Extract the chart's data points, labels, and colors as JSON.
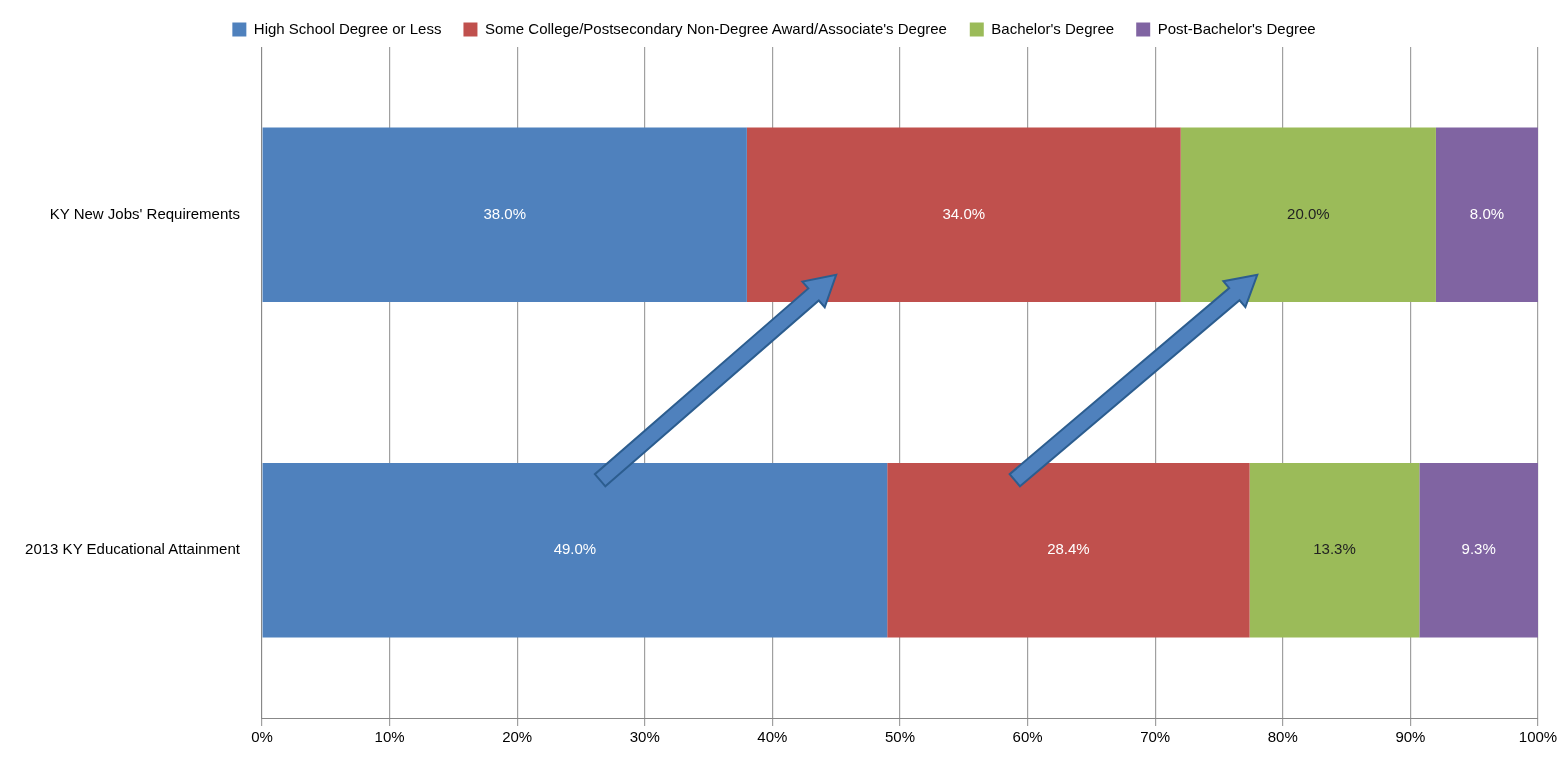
{
  "chart_data": {
    "type": "bar",
    "orientation": "horizontal",
    "stacked": true,
    "categories": [
      "KY New Jobs' Requirements",
      "2013 KY Educational Attainment"
    ],
    "series": [
      {
        "name": "High School Degree or Less",
        "color": "#4f81bd",
        "values": [
          38.0,
          49.0
        ],
        "value_labels": [
          "38.0%",
          "49.0%"
        ]
      },
      {
        "name": "Some College/Postsecondary Non-Degree Award/Associate's Degree",
        "color": "#c0504d",
        "values": [
          34.0,
          28.4
        ],
        "value_labels": [
          "34.0%",
          "28.4%"
        ]
      },
      {
        "name": "Bachelor's Degree",
        "color": "#9bbb59",
        "values": [
          20.0,
          13.3
        ],
        "value_labels": [
          "20.0%",
          "13.3%"
        ]
      },
      {
        "name": "Post-Bachelor's Degree",
        "color": "#8064a2",
        "values": [
          8.0,
          9.3
        ],
        "value_labels": [
          "8.0%",
          "9.3%"
        ]
      }
    ],
    "xlim": [
      0,
      100
    ],
    "xticks": [
      {
        "value": 0,
        "label": "0%"
      },
      {
        "value": 10,
        "label": "10%"
      },
      {
        "value": 20,
        "label": "20%"
      },
      {
        "value": 30,
        "label": "30%"
      },
      {
        "value": 40,
        "label": "40%"
      },
      {
        "value": 50,
        "label": "50%"
      },
      {
        "value": 60,
        "label": "60%"
      },
      {
        "value": 70,
        "label": "70%"
      },
      {
        "value": 80,
        "label": "80%"
      },
      {
        "value": 90,
        "label": "90%"
      },
      {
        "value": 100,
        "label": "100%"
      }
    ],
    "grid": "x",
    "legend": "top"
  }
}
